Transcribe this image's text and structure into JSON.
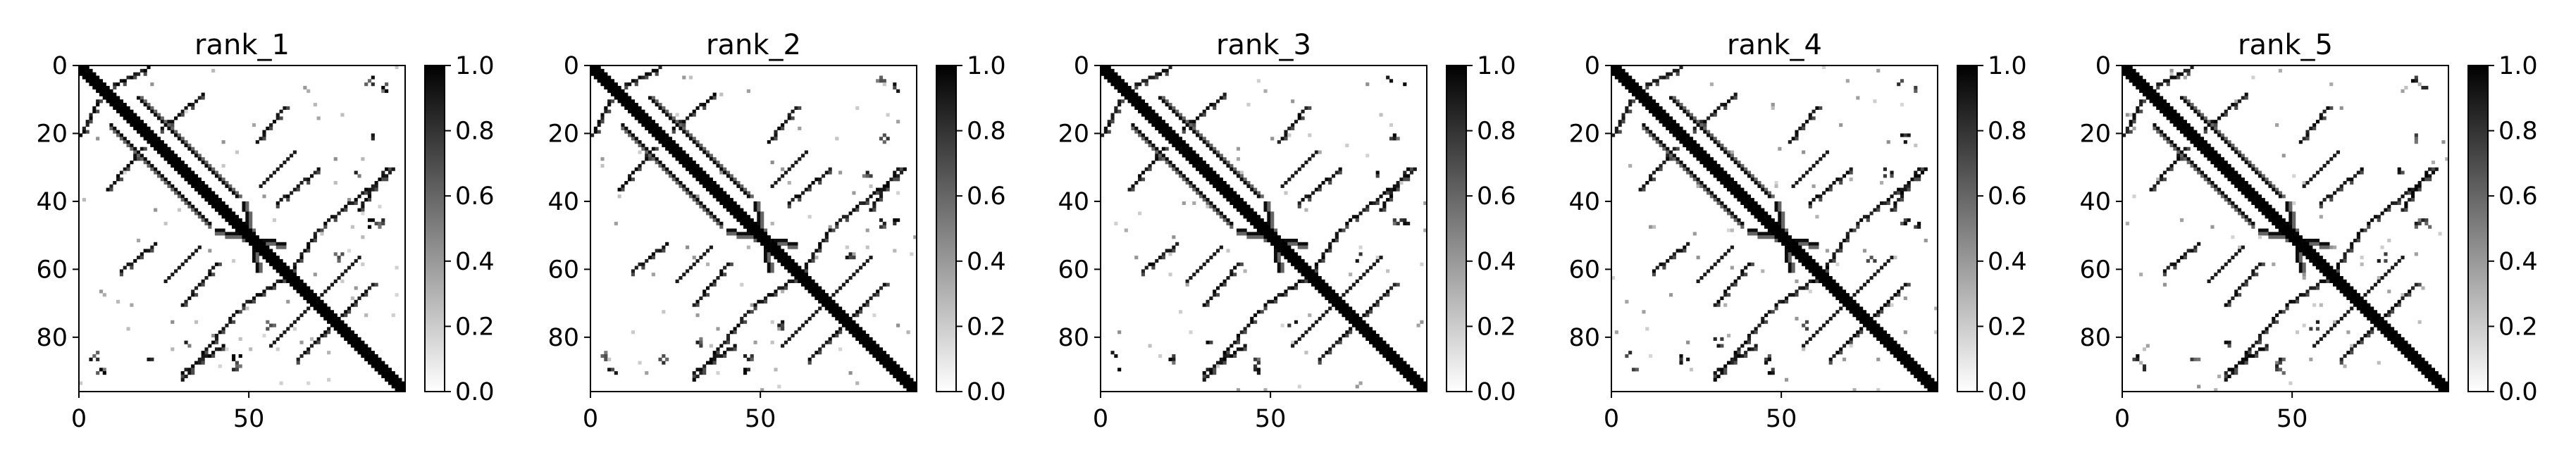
{
  "figure": {
    "panel_titles": [
      "rank_1",
      "rank_2",
      "rank_3",
      "rank_4",
      "rank_5"
    ]
  },
  "colors": {
    "map_low": "#ffffff",
    "map_high": "#000000",
    "axis": "#000000"
  },
  "chart_data": [
    {
      "type": "heatmap",
      "title": "rank_1",
      "cmap": "Greys",
      "matrix_size": 96,
      "xlim": [
        0,
        96
      ],
      "ylim": [
        96,
        0
      ],
      "x_ticks": [
        0,
        50
      ],
      "x_tick_labels": [
        "0",
        "50"
      ],
      "y_ticks": [
        0,
        20,
        40,
        60,
        80
      ],
      "y_tick_labels": [
        "0",
        "20",
        "40",
        "60",
        "80"
      ],
      "colorbar": {
        "range": [
          0.0,
          1.0
        ],
        "ticks": [
          "0.0",
          "0.2",
          "0.4",
          "0.6",
          "0.8",
          "1.0"
        ]
      },
      "grid": false,
      "structure": {
        "diagonal_band": {
          "value": 1.0,
          "half_width": 2
        },
        "helix_offsets": [
          3,
          4
        ],
        "anti_diagonal_contacts": [
          {
            "from": [
              9,
              17
            ],
            "to": [
              38,
              46
            ]
          },
          {
            "from": [
              40,
              48
            ],
            "to": [
              60,
              52
            ]
          }
        ],
        "antiparallel_strand_pairs": [
          {
            "center": [
              62,
              76
            ],
            "length": 12
          },
          {
            "center": [
              30,
              58
            ],
            "length": 10
          }
        ],
        "long_range_blobs": [
          [
            5,
            88
          ],
          [
            3,
            84
          ],
          [
            55,
            75
          ],
          [
            45,
            88
          ],
          [
            20,
            85
          ],
          [
            80,
            30
          ],
          [
            85,
            45
          ]
        ]
      }
    },
    {
      "type": "heatmap",
      "title": "rank_2",
      "cmap": "Greys",
      "matrix_size": 96,
      "xlim": [
        0,
        96
      ],
      "ylim": [
        96,
        0
      ],
      "x_ticks": [
        0,
        50
      ],
      "x_tick_labels": [
        "0",
        "50"
      ],
      "y_ticks": [
        0,
        20,
        40,
        60,
        80
      ],
      "y_tick_labels": [
        "0",
        "20",
        "40",
        "60",
        "80"
      ],
      "colorbar": {
        "range": [
          0.0,
          1.0
        ],
        "ticks": [
          "0.0",
          "0.2",
          "0.4",
          "0.6",
          "0.8",
          "1.0"
        ]
      },
      "grid": false,
      "structure": {
        "diagonal_band": {
          "value": 1.0,
          "half_width": 2
        },
        "helix_offsets": [
          3,
          4
        ],
        "anti_diagonal_contacts": [
          {
            "from": [
              9,
              17
            ],
            "to": [
              38,
              46
            ]
          },
          {
            "from": [
              40,
              48
            ],
            "to": [
              60,
              52
            ]
          }
        ],
        "antiparallel_strand_pairs": [
          {
            "center": [
              62,
              76
            ],
            "length": 12
          },
          {
            "center": [
              30,
              58
            ],
            "length": 10
          }
        ],
        "long_range_blobs": [
          [
            5,
            88
          ],
          [
            3,
            84
          ],
          [
            55,
            75
          ],
          [
            45,
            88
          ],
          [
            20,
            85
          ],
          [
            80,
            30
          ],
          [
            85,
            45
          ]
        ]
      }
    },
    {
      "type": "heatmap",
      "title": "rank_3",
      "cmap": "Greys",
      "matrix_size": 96,
      "xlim": [
        0,
        96
      ],
      "ylim": [
        96,
        0
      ],
      "x_ticks": [
        0,
        50
      ],
      "x_tick_labels": [
        "0",
        "50"
      ],
      "y_ticks": [
        0,
        20,
        40,
        60,
        80
      ],
      "y_tick_labels": [
        "0",
        "20",
        "40",
        "60",
        "80"
      ],
      "colorbar": {
        "range": [
          0.0,
          1.0
        ],
        "ticks": [
          "0.0",
          "0.2",
          "0.4",
          "0.6",
          "0.8",
          "1.0"
        ]
      },
      "grid": false,
      "structure": {
        "diagonal_band": {
          "value": 1.0,
          "half_width": 2
        },
        "helix_offsets": [
          3,
          4
        ],
        "anti_diagonal_contacts": [
          {
            "from": [
              9,
              17
            ],
            "to": [
              38,
              46
            ]
          },
          {
            "from": [
              40,
              48
            ],
            "to": [
              60,
              52
            ]
          }
        ],
        "antiparallel_strand_pairs": [
          {
            "center": [
              62,
              76
            ],
            "length": 12
          },
          {
            "center": [
              30,
              58
            ],
            "length": 10
          }
        ],
        "long_range_blobs": [
          [
            5,
            88
          ],
          [
            3,
            84
          ],
          [
            55,
            75
          ],
          [
            45,
            88
          ],
          [
            20,
            85
          ],
          [
            80,
            30
          ],
          [
            85,
            45
          ]
        ]
      }
    },
    {
      "type": "heatmap",
      "title": "rank_4",
      "cmap": "Greys",
      "matrix_size": 96,
      "xlim": [
        0,
        96
      ],
      "ylim": [
        96,
        0
      ],
      "x_ticks": [
        0,
        50
      ],
      "x_tick_labels": [
        "0",
        "50"
      ],
      "y_ticks": [
        0,
        20,
        40,
        60,
        80
      ],
      "y_tick_labels": [
        "0",
        "20",
        "40",
        "60",
        "80"
      ],
      "colorbar": {
        "range": [
          0.0,
          1.0
        ],
        "ticks": [
          "0.0",
          "0.2",
          "0.4",
          "0.6",
          "0.8",
          "1.0"
        ]
      },
      "grid": false,
      "structure": {
        "diagonal_band": {
          "value": 1.0,
          "half_width": 2
        },
        "helix_offsets": [
          3,
          4
        ],
        "anti_diagonal_contacts": [
          {
            "from": [
              9,
              17
            ],
            "to": [
              38,
              46
            ]
          },
          {
            "from": [
              40,
              48
            ],
            "to": [
              60,
              52
            ]
          }
        ],
        "antiparallel_strand_pairs": [
          {
            "center": [
              62,
              76
            ],
            "length": 12
          },
          {
            "center": [
              30,
              58
            ],
            "length": 10
          }
        ],
        "long_range_blobs": [
          [
            5,
            88
          ],
          [
            3,
            84
          ],
          [
            55,
            75
          ],
          [
            45,
            88
          ],
          [
            20,
            85
          ],
          [
            80,
            30
          ],
          [
            85,
            45
          ]
        ]
      }
    },
    {
      "type": "heatmap",
      "title": "rank_5",
      "cmap": "Greys",
      "matrix_size": 96,
      "xlim": [
        0,
        96
      ],
      "ylim": [
        96,
        0
      ],
      "x_ticks": [
        0,
        50
      ],
      "x_tick_labels": [
        "0",
        "50"
      ],
      "y_ticks": [
        0,
        20,
        40,
        60,
        80
      ],
      "y_tick_labels": [
        "0",
        "20",
        "40",
        "60",
        "80"
      ],
      "colorbar": {
        "range": [
          0.0,
          1.0
        ],
        "ticks": [
          "0.0",
          "0.2",
          "0.4",
          "0.6",
          "0.8",
          "1.0"
        ]
      },
      "grid": false,
      "structure": {
        "diagonal_band": {
          "value": 1.0,
          "half_width": 2
        },
        "helix_offsets": [
          3,
          4
        ],
        "anti_diagonal_contacts": [
          {
            "from": [
              9,
              17
            ],
            "to": [
              38,
              46
            ]
          },
          {
            "from": [
              40,
              48
            ],
            "to": [
              60,
              52
            ]
          }
        ],
        "antiparallel_strand_pairs": [
          {
            "center": [
              62,
              76
            ],
            "length": 12
          },
          {
            "center": [
              30,
              58
            ],
            "length": 10
          }
        ],
        "long_range_blobs": [
          [
            5,
            88
          ],
          [
            3,
            84
          ],
          [
            55,
            75
          ],
          [
            45,
            88
          ],
          [
            20,
            85
          ],
          [
            80,
            30
          ],
          [
            85,
            45
          ]
        ]
      }
    }
  ]
}
